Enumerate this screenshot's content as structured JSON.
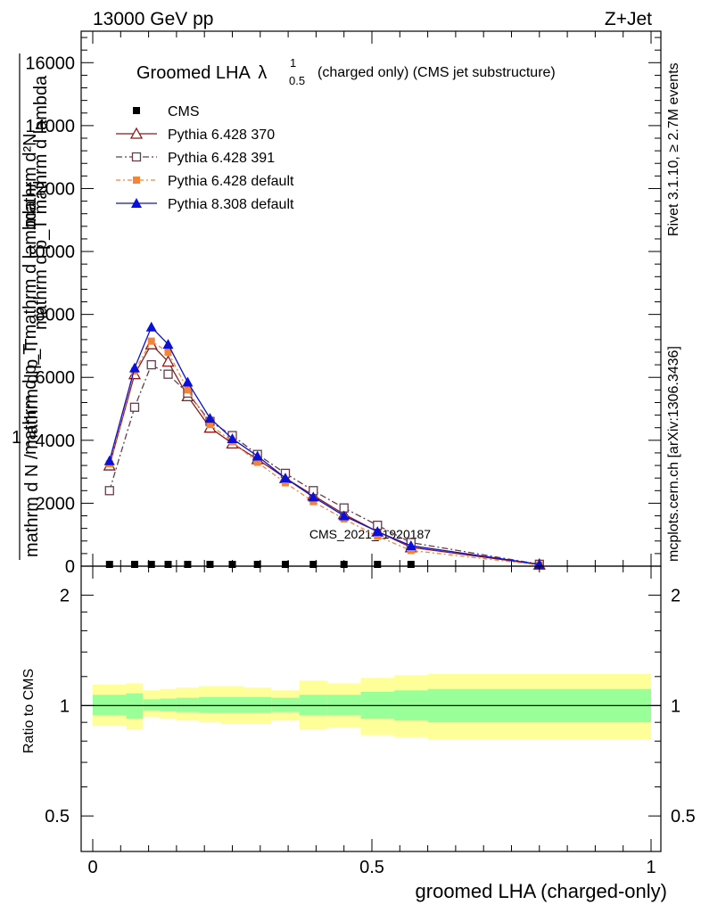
{
  "header": {
    "energy_label": "13000 GeV pp",
    "process_label": "Z+Jet"
  },
  "side": {
    "rivet_label": "Rivet 3.1.10, ≥ 2.7M events",
    "mcplots_label": "mcplots.cern.ch [arXiv:1306.3436]"
  },
  "watermark": "CMS_2021_I1920187",
  "chart_data": [
    {
      "type": "line",
      "title_main": "Groomed LHA",
      "title_lambda": "λ",
      "title_sup": "1",
      "title_sub": "0.5",
      "title_rest": "(charged only) (CMS jet substructure)",
      "ylabel_top": "mathrm d²N",
      "ylabel_top2": "mathrm d p_T mathrm d lambda",
      "ylabel_num": "1",
      "ylabel_bottom": "mathrm d N / mathrm d p_T",
      "ylabel_bottom2": "mathrm d p_T mathrm d lambda",
      "xlim": [
        0,
        1
      ],
      "ylim": [
        0,
        17000
      ],
      "yticks": [
        0,
        2000,
        4000,
        6000,
        8000,
        10000,
        12000,
        14000,
        16000
      ],
      "ytick_labels": [
        "0",
        "2000",
        "4000",
        "6000",
        "8000",
        "10000",
        "12000",
        "14000",
        "16000"
      ],
      "legend_position": "top-left",
      "series": [
        {
          "name": "CMS",
          "x": [
            0.03,
            0.075,
            0.105,
            0.135,
            0.17,
            0.21,
            0.25,
            0.295,
            0.345,
            0.395,
            0.45,
            0.51,
            0.57
          ],
          "y": [
            0,
            0,
            0,
            0,
            0,
            0,
            0,
            0,
            0,
            0,
            0,
            0,
            0
          ]
        },
        {
          "name": "Pythia 6.428 370",
          "x": [
            0.03,
            0.075,
            0.105,
            0.135,
            0.17,
            0.21,
            0.25,
            0.295,
            0.345,
            0.395,
            0.45,
            0.51,
            0.57,
            0.8
          ],
          "y": [
            3200,
            6100,
            7050,
            6500,
            5400,
            4400,
            3900,
            3400,
            2800,
            2250,
            1650,
            1100,
            600,
            50
          ]
        },
        {
          "name": "Pythia 6.428 391",
          "x": [
            0.03,
            0.075,
            0.105,
            0.135,
            0.17,
            0.21,
            0.25,
            0.295,
            0.345,
            0.395,
            0.45,
            0.51,
            0.57,
            0.8
          ],
          "y": [
            2400,
            5050,
            6400,
            6100,
            5500,
            4600,
            4150,
            3550,
            2950,
            2400,
            1850,
            1300,
            750,
            60
          ]
        },
        {
          "name": "Pythia 6.428 default",
          "x": [
            0.03,
            0.075,
            0.105,
            0.135,
            0.17,
            0.21,
            0.25,
            0.295,
            0.345,
            0.395,
            0.45,
            0.51,
            0.57,
            0.8
          ],
          "y": [
            3250,
            6200,
            7150,
            6800,
            5600,
            4500,
            3950,
            3300,
            2650,
            2050,
            1500,
            950,
            500,
            40
          ]
        },
        {
          "name": "Pythia 8.308 default",
          "x": [
            0.03,
            0.075,
            0.105,
            0.135,
            0.17,
            0.21,
            0.25,
            0.295,
            0.345,
            0.395,
            0.45,
            0.51,
            0.57,
            0.8
          ],
          "y": [
            3350,
            6300,
            7600,
            7050,
            5850,
            4700,
            4050,
            3500,
            2800,
            2200,
            1600,
            1100,
            650,
            60
          ]
        }
      ],
      "colors": {
        "CMS": "#000000",
        "Pythia 6.428 370": "#8b1a1a",
        "Pythia 6.428 391": "#6b3a4a",
        "Pythia 6.428 default": "#f4843c",
        "Pythia 8.308 default": "#0a10d8"
      }
    },
    {
      "type": "area",
      "ylabel": "Ratio to CMS",
      "xlabel": "groomed LHA (charged-only)",
      "xlim": [
        0,
        1
      ],
      "ylim": [
        0.4,
        2.4
      ],
      "log_y": true,
      "xticks": [
        0,
        0.5,
        1
      ],
      "xtick_labels": [
        "0",
        "0.5",
        "1"
      ],
      "yticks": [
        0.5,
        1,
        2
      ],
      "ytick_labels": [
        "0.5",
        "1",
        "2"
      ],
      "bins": [
        {
          "lo": 0.0,
          "hi": 0.06,
          "inner": [
            0.94,
            1.07
          ],
          "outer": [
            0.88,
            1.14
          ]
        },
        {
          "lo": 0.06,
          "hi": 0.09,
          "inner": [
            0.92,
            1.08
          ],
          "outer": [
            0.86,
            1.15
          ]
        },
        {
          "lo": 0.09,
          "hi": 0.12,
          "inner": [
            0.97,
            1.04
          ],
          "outer": [
            0.93,
            1.1
          ]
        },
        {
          "lo": 0.12,
          "hi": 0.15,
          "inner": [
            0.965,
            1.045
          ],
          "outer": [
            0.92,
            1.11
          ]
        },
        {
          "lo": 0.15,
          "hi": 0.19,
          "inner": [
            0.96,
            1.05
          ],
          "outer": [
            0.91,
            1.12
          ]
        },
        {
          "lo": 0.19,
          "hi": 0.23,
          "inner": [
            0.955,
            1.055
          ],
          "outer": [
            0.9,
            1.13
          ]
        },
        {
          "lo": 0.23,
          "hi": 0.27,
          "inner": [
            0.955,
            1.055
          ],
          "outer": [
            0.89,
            1.13
          ]
        },
        {
          "lo": 0.27,
          "hi": 0.32,
          "inner": [
            0.955,
            1.055
          ],
          "outer": [
            0.89,
            1.12
          ]
        },
        {
          "lo": 0.32,
          "hi": 0.37,
          "inner": [
            0.96,
            1.05
          ],
          "outer": [
            0.91,
            1.1
          ]
        },
        {
          "lo": 0.37,
          "hi": 0.42,
          "inner": [
            0.94,
            1.07
          ],
          "outer": [
            0.86,
            1.17
          ]
        },
        {
          "lo": 0.42,
          "hi": 0.48,
          "inner": [
            0.94,
            1.07
          ],
          "outer": [
            0.87,
            1.15
          ]
        },
        {
          "lo": 0.48,
          "hi": 0.54,
          "inner": [
            0.92,
            1.09
          ],
          "outer": [
            0.83,
            1.19
          ]
        },
        {
          "lo": 0.54,
          "hi": 0.6,
          "inner": [
            0.91,
            1.1
          ],
          "outer": [
            0.82,
            1.21
          ]
        },
        {
          "lo": 0.6,
          "hi": 1.0,
          "inner": [
            0.9,
            1.11
          ],
          "outer": [
            0.81,
            1.22
          ]
        }
      ],
      "colors": {
        "inner": "#99ff99",
        "outer": "#ffff99",
        "ref_line": "#000000"
      }
    }
  ]
}
